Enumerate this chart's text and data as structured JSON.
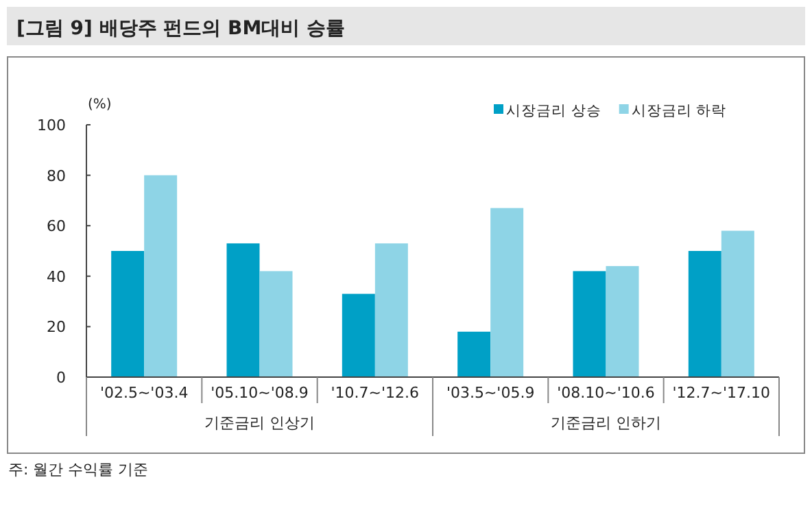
{
  "chart_data": {
    "type": "bar",
    "title": "[그림 9] 배당주 펀드의 BM대비 승률",
    "ylabel": "(%)",
    "categories": [
      "'02.5~'03.4",
      "'05.10~'08.9",
      "'10.7~'12.6",
      "'03.5~'05.9",
      "'08.10~'10.6",
      "'12.7~'17.10"
    ],
    "series": [
      {
        "name": "시장금리 상승",
        "color": "#00a0c6",
        "values": [
          50,
          53,
          33,
          18,
          42,
          50
        ]
      },
      {
        "name": "시장금리 하락",
        "color": "#8ed4e6",
        "values": [
          80,
          42,
          53,
          67,
          44,
          58
        ]
      }
    ],
    "ylim": [
      0,
      100
    ],
    "yticks": [
      0,
      20,
      40,
      60,
      80,
      100
    ],
    "grid": false,
    "legend": "top right",
    "annotations": [
      "기준금리 인상기",
      "기준금리 인하기",
      "주: 월간 수익률 기준"
    ]
  }
}
